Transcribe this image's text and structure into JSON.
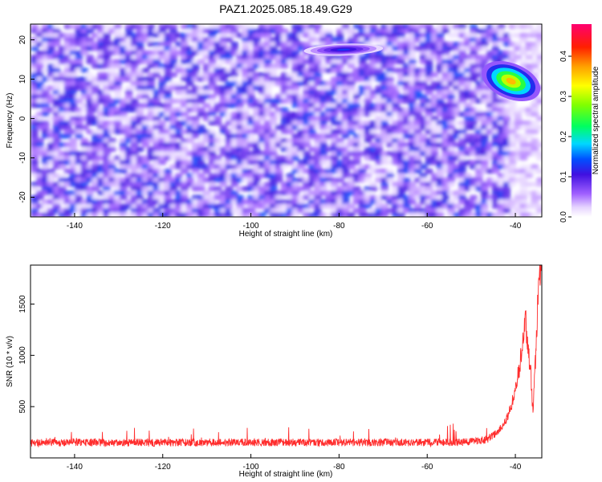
{
  "figure": {
    "title": "PAZ1.2025.085.18.49.G29"
  },
  "chart_data": [
    {
      "type": "heatmap",
      "xlabel": "Height of straight line (km)",
      "ylabel": "Frequency (Hz)",
      "xlim": [
        -150,
        -34
      ],
      "ylim": [
        -25,
        24
      ],
      "xticks": [
        -140,
        -120,
        -100,
        -80,
        -60,
        -40
      ],
      "yticks": [
        -20,
        -10,
        0,
        10,
        20
      ],
      "colorbar": {
        "label": "Normalized spectral amplitude",
        "range": [
          0,
          0.48
        ],
        "ticks": [
          0.0,
          0.1,
          0.2,
          0.3,
          0.4
        ]
      },
      "features": [
        {
          "x_range": [
            -48,
            -34
          ],
          "y_range": [
            5,
            14
          ],
          "peak_amplitude": 0.42
        },
        {
          "x_range": [
            -88,
            -70
          ],
          "y_range": [
            16,
            19
          ],
          "peak_amplitude": 0.15
        }
      ]
    },
    {
      "type": "line",
      "xlabel": "Height of straight line (km)",
      "ylabel": "SNR (10 * v/v)",
      "xlim": [
        -150,
        -34
      ],
      "ylim": [
        0,
        1880
      ],
      "xticks": [
        -140,
        -120,
        -100,
        -80,
        -60,
        -40
      ],
      "yticks": [
        500,
        1000,
        1500
      ],
      "series": [
        {
          "color": "#ff2d2d",
          "points": [
            [
              -150,
              150
            ],
            [
              -148,
              140
            ],
            [
              -146,
              160
            ],
            [
              -144,
              145
            ],
            [
              -142,
              150
            ],
            [
              -140,
              155
            ],
            [
              -138,
              148
            ],
            [
              -136,
              150
            ],
            [
              -134,
              152
            ],
            [
              -132,
              146
            ],
            [
              -130,
              150
            ],
            [
              -128,
              148
            ],
            [
              -126,
              152
            ],
            [
              -124,
              150
            ],
            [
              -122,
              147
            ],
            [
              -120,
              150
            ],
            [
              -118,
              149
            ],
            [
              -116,
              151
            ],
            [
              -114,
              148
            ],
            [
              -112,
              150
            ],
            [
              -110,
              152
            ],
            [
              -108,
              149
            ],
            [
              -106,
              150
            ],
            [
              -104,
              148
            ],
            [
              -102,
              151
            ],
            [
              -100,
              150
            ],
            [
              -98,
              149
            ],
            [
              -96,
              150
            ],
            [
              -94,
              152
            ],
            [
              -92,
              149
            ],
            [
              -90,
              150
            ],
            [
              -88,
              148
            ],
            [
              -86,
              151
            ],
            [
              -84,
              150
            ],
            [
              -82,
              152
            ],
            [
              -80,
              149
            ],
            [
              -78,
              150
            ],
            [
              -76,
              151
            ],
            [
              -74,
              150
            ],
            [
              -72,
              149
            ],
            [
              -70,
              152
            ],
            [
              -68,
              150
            ],
            [
              -66,
              151
            ],
            [
              -64,
              150
            ],
            [
              -62,
              152
            ],
            [
              -60,
              150
            ],
            [
              -58,
              151
            ],
            [
              -56,
              153
            ],
            [
              -54,
              152
            ],
            [
              -52,
              155
            ],
            [
              -50,
              158
            ],
            [
              -48,
              165
            ],
            [
              -46,
              190
            ],
            [
              -45,
              220
            ],
            [
              -44,
              250
            ],
            [
              -43,
              310
            ],
            [
              -42,
              380
            ],
            [
              -41,
              500
            ],
            [
              -40,
              650
            ],
            [
              -39.5,
              780
            ],
            [
              -39,
              900
            ],
            [
              -38.5,
              1080
            ],
            [
              -38,
              1230
            ],
            [
              -37.7,
              1330
            ],
            [
              -37.2,
              1150
            ],
            [
              -37,
              1020
            ],
            [
              -36.6,
              900
            ],
            [
              -36.4,
              750
            ],
            [
              -36.2,
              560
            ],
            [
              -36,
              450
            ],
            [
              -35.8,
              640
            ],
            [
              -35.5,
              900
            ],
            [
              -35.2,
              1150
            ],
            [
              -35,
              1450
            ],
            [
              -34.7,
              1650
            ],
            [
              -34.4,
              1780
            ],
            [
              -34,
              1880
            ]
          ]
        }
      ]
    }
  ]
}
